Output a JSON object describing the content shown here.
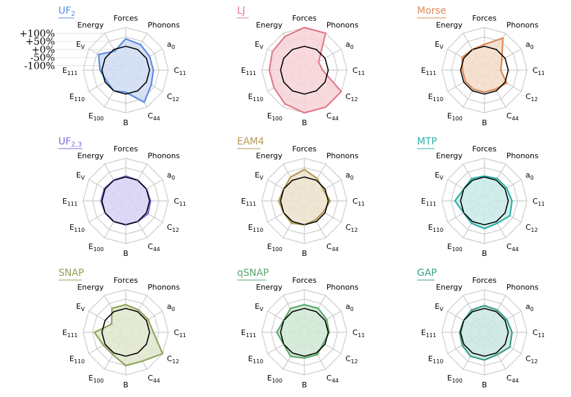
{
  "chart_data": {
    "type": "radar",
    "axes": [
      {
        "main": "Forces",
        "sub": ""
      },
      {
        "main": "Phonons",
        "sub": ""
      },
      {
        "main": "a",
        "sub": "0"
      },
      {
        "main": "C",
        "sub": "11"
      },
      {
        "main": "C",
        "sub": "12"
      },
      {
        "main": "C",
        "sub": "44"
      },
      {
        "main": "B",
        "sub": ""
      },
      {
        "main": "E",
        "sub": "100"
      },
      {
        "main": "E",
        "sub": "110"
      },
      {
        "main": "E",
        "sub": "111"
      },
      {
        "main": "E",
        "sub": "V"
      },
      {
        "main": "Energy",
        "sub": ""
      }
    ],
    "scale_labels": [
      "+100%",
      "+50%",
      "+0%",
      "-50%",
      "-100%"
    ],
    "rlim": [
      -100,
      100
    ],
    "reference_value": 0,
    "panels": [
      {
        "title": "UF",
        "title_sub": "2",
        "color": "#5b8be0",
        "fill": "#cfdcf5",
        "values": [
          40,
          30,
          20,
          20,
          30,
          70,
          -10,
          0,
          -10,
          10,
          40,
          -10
        ]
      },
      {
        "title": "LJ",
        "title_sub": "",
        "color": "#e07a8a",
        "fill": "#f7d3d8",
        "values": [
          100,
          100,
          -40,
          -30,
          100,
          100,
          100,
          80,
          60,
          60,
          70,
          80
        ]
      },
      {
        "title": "Morse",
        "title_sub": "",
        "color": "#d98a56",
        "fill": "#f4dcc9",
        "values": [
          10,
          70,
          -20,
          -40,
          10,
          -10,
          -10,
          -10,
          -10,
          -10,
          10,
          0
        ]
      },
      {
        "title": "UF",
        "title_sub": "2,3",
        "color": "#7b68dd",
        "fill": "#d6d1f6",
        "values": [
          5,
          0,
          0,
          5,
          10,
          0,
          0,
          0,
          0,
          5,
          5,
          0
        ]
      },
      {
        "title": "EAM4",
        "title_sub": "",
        "color": "#b59a55",
        "fill": "#ece3cd",
        "values": [
          40,
          10,
          -10,
          10,
          -10,
          -10,
          0,
          10,
          0,
          10,
          0,
          20
        ]
      },
      {
        "title": "MTP",
        "title_sub": "",
        "color": "#2bb0a8",
        "fill": "#c8eae8",
        "values": [
          5,
          10,
          10,
          20,
          30,
          10,
          20,
          10,
          0,
          30,
          0,
          10
        ]
      },
      {
        "title": "SNAP",
        "title_sub": "",
        "color": "#8fa35a",
        "fill": "#dfe6cd",
        "values": [
          20,
          10,
          10,
          20,
          100,
          50,
          50,
          10,
          10,
          40,
          -40,
          20
        ]
      },
      {
        "title": "qSNAP",
        "title_sub": "",
        "color": "#5aa86a",
        "fill": "#cfe8d4",
        "values": [
          20,
          20,
          10,
          5,
          -10,
          10,
          10,
          20,
          0,
          20,
          0,
          20
        ]
      },
      {
        "title": "GAP",
        "title_sub": "",
        "color": "#3a9c8a",
        "fill": "#c9e6df",
        "values": [
          15,
          10,
          10,
          20,
          30,
          10,
          20,
          20,
          10,
          5,
          0,
          10
        ]
      }
    ]
  }
}
